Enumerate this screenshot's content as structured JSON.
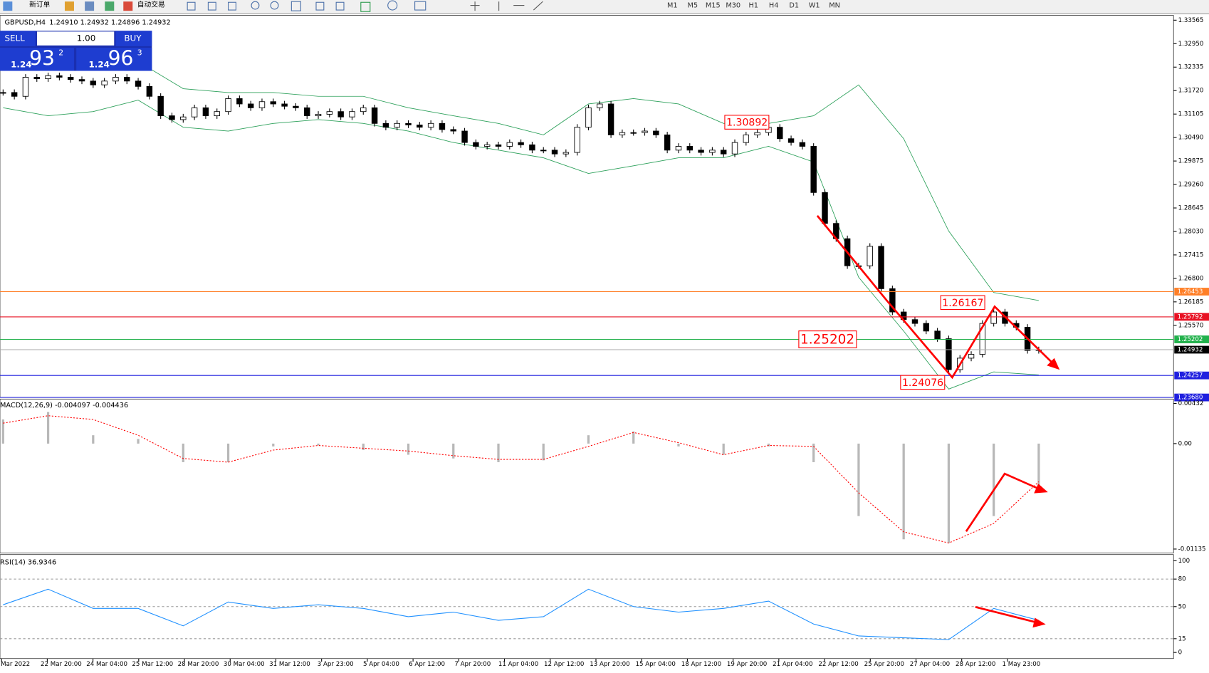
{
  "toolbar": {
    "new_order": "新订单",
    "auto_trading": "自动交易",
    "timeframes": [
      "M1",
      "M5",
      "M15",
      "M30",
      "H1",
      "H4",
      "D1",
      "W1",
      "MN"
    ]
  },
  "header": {
    "symbol": "GBPUSD,H4",
    "quote": "1.24910 1.24932 1.24896 1.24932"
  },
  "trade_panel": {
    "sell": "SELL",
    "lots": "1.00",
    "buy": "BUY",
    "bid": {
      "prefix": "1.24",
      "main": "93",
      "sup": "2"
    },
    "ask": {
      "prefix": "1.24",
      "main": "96",
      "sup": "3"
    }
  },
  "price_panel": {
    "ylim": [
      1.2368,
      1.3369
    ],
    "yticks": [
      {
        "value": 1.33565,
        "label": "1.33565"
      },
      {
        "value": 1.3295,
        "label": "1.32950"
      },
      {
        "value": 1.32335,
        "label": "1.32335"
      },
      {
        "value": 1.3172,
        "label": "1.31720"
      },
      {
        "value": 1.31105,
        "label": "1.31105"
      },
      {
        "value": 1.3049,
        "label": "1.30490"
      },
      {
        "value": 1.29875,
        "label": "1.29875"
      },
      {
        "value": 1.2926,
        "label": "1.29260"
      },
      {
        "value": 1.28645,
        "label": "1.28645"
      },
      {
        "value": 1.2803,
        "label": "1.28030"
      },
      {
        "value": 1.27415,
        "label": "1.27415"
      },
      {
        "value": 1.268,
        "label": "1.26800"
      },
      {
        "value": 1.26185,
        "label": "1.26185"
      },
      {
        "value": 1.2557,
        "label": "1.25570"
      }
    ],
    "closes": [
      1.3167,
      1.3157,
      1.3207,
      1.3203,
      1.3211,
      1.3207,
      1.3201,
      1.3197,
      1.3187,
      1.3197,
      1.3207,
      1.3197,
      1.3183,
      1.3157,
      1.3106,
      1.3096,
      1.3103,
      1.3127,
      1.3106,
      1.3117,
      1.3151,
      1.3137,
      1.3127,
      1.3143,
      1.3137,
      1.3131,
      1.3127,
      1.3106,
      1.311,
      1.3117,
      1.3103,
      1.3117,
      1.3127,
      1.3086,
      1.3076,
      1.3086,
      1.3082,
      1.3076,
      1.3086,
      1.307,
      1.3066,
      1.3036,
      1.3026,
      1.303,
      1.3026,
      1.3036,
      1.303,
      1.3016,
      1.3016,
      1.3006,
      1.301,
      1.3076,
      1.3127,
      1.3137,
      1.3056,
      1.3062,
      1.3062,
      1.3066,
      1.3056,
      1.3016,
      1.3026,
      1.3016,
      1.301,
      1.3016,
      1.3006,
      1.3036,
      1.3056,
      1.3062,
      1.3076,
      1.3046,
      1.3036,
      1.3026,
      1.2905,
      1.2824,
      1.2784,
      1.2713,
      1.2713,
      1.2764,
      1.2653,
      1.2592,
      1.2572,
      1.2562,
      1.2542,
      1.2522,
      1.2441,
      1.2471,
      1.2481,
      1.2562,
      1.2592,
      1.2562,
      1.2552,
      1.2491,
      1.2493
    ],
    "bb_upper": [
      1.3237,
      1.3248,
      1.3264,
      1.3248,
      1.3177,
      1.3167,
      1.3167,
      1.3157,
      1.3157,
      1.3127,
      1.3106,
      1.3086,
      1.3056,
      1.3137,
      1.3151,
      1.3137,
      1.3086,
      1.3086,
      1.3106,
      1.3187,
      1.3046,
      1.2804,
      1.2643,
      1.2622
    ],
    "bb_lower": [
      1.3127,
      1.3106,
      1.3117,
      1.3147,
      1.3076,
      1.3066,
      1.3086,
      1.3096,
      1.3086,
      1.3066,
      1.3036,
      1.3016,
      1.2996,
      1.2955,
      1.2975,
      1.2996,
      1.2996,
      1.3026,
      1.2985,
      1.2683,
      1.2542,
      1.239,
      1.2435,
      1.2427
    ],
    "levels": [
      {
        "value": 1.26453,
        "label": "1.26453",
        "color": "#ff7f27"
      },
      {
        "value": 1.25792,
        "label": "1.25792",
        "color": "#e81123"
      },
      {
        "value": 1.25202,
        "label": "1.25202",
        "color": "#22b14c"
      },
      {
        "value": 1.24932,
        "label": "1.24932",
        "color": "#000000"
      },
      {
        "value": 1.24257,
        "label": "1.24257",
        "color": "#1f1fdf"
      },
      {
        "value": 1.2368,
        "label": "1.23680",
        "color": "#1f1fdf"
      }
    ],
    "annotations": [
      {
        "value": 1.30892,
        "label": "1.30892"
      },
      {
        "value": 1.26167,
        "label": "1.26167"
      },
      {
        "value": 1.25202,
        "label": "1.25202"
      },
      {
        "value": 1.24076,
        "label": "1.24076"
      }
    ]
  },
  "macd_panel": {
    "title": "MACD(12,26,9) -0.004097 -0.004436",
    "ylim": [
      -0.0117,
      0.0048
    ],
    "yticks": [
      {
        "value": 0.00432,
        "label": "0.00432"
      },
      {
        "value": 0,
        "label": "0.00"
      },
      {
        "value": -0.01135,
        "label": "-0.01135"
      }
    ],
    "histogram": [
      0.0026,
      0.0034,
      0.0009,
      0.0005,
      -0.002,
      -0.002,
      -0.0003,
      -0.0002,
      -0.0007,
      -0.0012,
      -0.0016,
      -0.002,
      -0.0018,
      0.0009,
      0.0013,
      -0.0003,
      -0.0012,
      -0.0003,
      -0.002,
      -0.0078,
      -0.0103,
      -0.0107,
      -0.0078,
      -0.0045
    ],
    "signal": [
      0.0022,
      0.003,
      0.0026,
      0.0009,
      -0.0016,
      -0.002,
      -0.0007,
      -0.0002,
      -0.0005,
      -0.0008,
      -0.0013,
      -0.0017,
      -0.0017,
      -0.0003,
      0.0012,
      0.0001,
      -0.0012,
      -0.0002,
      -0.0003,
      -0.0053,
      -0.0095,
      -0.0107,
      -0.0086,
      -0.0041
    ]
  },
  "rsi_panel": {
    "title": "RSI(14) 36.9346",
    "ylim": [
      -6.7,
      106.7
    ],
    "yticks": [
      100,
      80,
      50,
      15,
      0
    ],
    "values": [
      52,
      69,
      48,
      48,
      29,
      55,
      48,
      52,
      48,
      39,
      44,
      35,
      39,
      69,
      50,
      44,
      48,
      56,
      31,
      18,
      16,
      14,
      48,
      35
    ]
  },
  "time_axis": [
    "Mar 2022",
    "22 Mar 20:00",
    "24 Mar 04:00",
    "25 Mar 12:00",
    "28 Mar 20:00",
    "30 Mar 04:00",
    "31 Mar 12:00",
    "3 Apr 23:00",
    "5 Apr 04:00",
    "6 Apr 12:00",
    "7 Apr 20:00",
    "11 Apr 04:00",
    "12 Apr 12:00",
    "13 Apr 20:00",
    "15 Apr 04:00",
    "18 Apr 12:00",
    "19 Apr 20:00",
    "21 Apr 04:00",
    "22 Apr 12:00",
    "25 Apr 20:00",
    "27 Apr 04:00",
    "28 Apr 12:00",
    "1 May 23:00"
  ]
}
